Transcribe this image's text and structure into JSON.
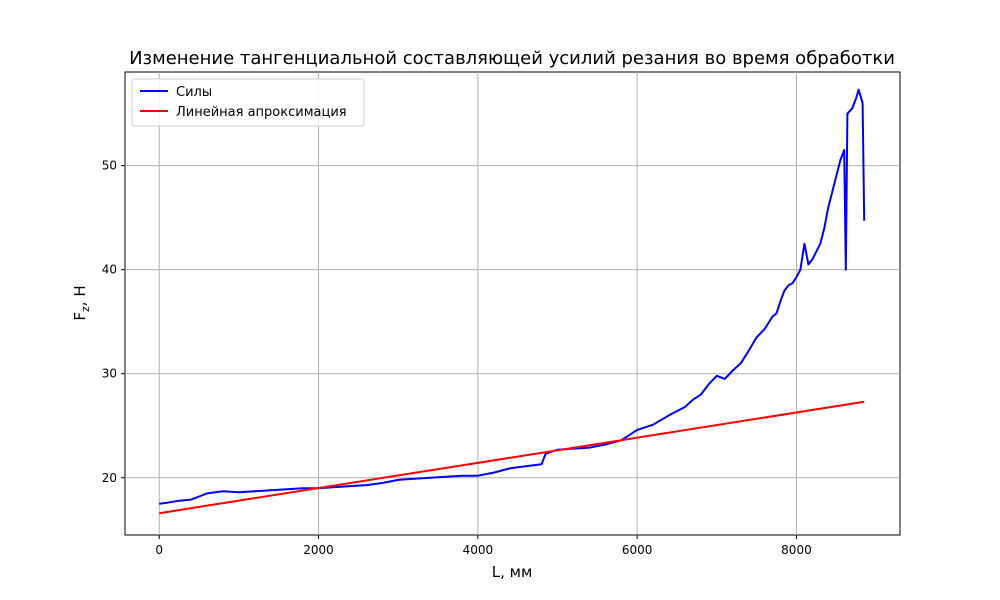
{
  "chart_data": {
    "type": "line",
    "title": "Изменение тангенциальной составляющей усилий резания во время обработки",
    "xlabel": "L, мм",
    "ylabel_main": "F",
    "ylabel_sub": "z",
    "ylabel_rest": ", Н",
    "xlim": [
      -430,
      9300
    ],
    "ylim": [
      14.5,
      59
    ],
    "xticks": [
      0,
      2000,
      4000,
      6000,
      8000
    ],
    "yticks": [
      20,
      30,
      40,
      50
    ],
    "grid": true,
    "legend_position": "top-left",
    "series": [
      {
        "name": "Силы",
        "color": "#0000ff",
        "x": [
          0,
          100,
          250,
          400,
          500,
          600,
          800,
          1000,
          1200,
          1400,
          1600,
          1800,
          2000,
          2200,
          2400,
          2600,
          2800,
          3000,
          3200,
          3400,
          3600,
          3800,
          4000,
          4200,
          4400,
          4600,
          4800,
          4850,
          5000,
          5200,
          5400,
          5600,
          5800,
          6000,
          6200,
          6400,
          6600,
          6700,
          6800,
          6900,
          7000,
          7100,
          7200,
          7300,
          7400,
          7500,
          7600,
          7700,
          7750,
          7800,
          7850,
          7900,
          7950,
          8000,
          8050,
          8100,
          8150,
          8200,
          8300,
          8350,
          8400,
          8450,
          8500,
          8550,
          8600,
          8620,
          8640,
          8700,
          8750,
          8780,
          8800,
          8830,
          8850
        ],
        "y": [
          17.5,
          17.6,
          17.8,
          17.9,
          18.2,
          18.5,
          18.7,
          18.6,
          18.7,
          18.8,
          18.9,
          19.0,
          19.0,
          19.1,
          19.2,
          19.3,
          19.5,
          19.8,
          19.9,
          20.0,
          20.1,
          20.2,
          20.2,
          20.5,
          20.9,
          21.1,
          21.3,
          22.3,
          22.7,
          22.8,
          22.9,
          23.2,
          23.6,
          24.6,
          25.1,
          26.0,
          26.8,
          27.5,
          28.0,
          29.0,
          29.8,
          29.5,
          30.3,
          31.0,
          32.2,
          33.5,
          34.3,
          35.5,
          35.8,
          37.0,
          38.0,
          38.5,
          38.7,
          39.3,
          40.0,
          42.5,
          40.5,
          41.0,
          42.5,
          44.0,
          46.0,
          47.5,
          49.0,
          50.5,
          51.5,
          40.0,
          55.0,
          55.5,
          56.5,
          57.3,
          56.8,
          56.0,
          44.7
        ]
      },
      {
        "name": "Линейная апроксимация",
        "color": "#ff0000",
        "x": [
          0,
          8850
        ],
        "y": [
          16.6,
          27.3
        ]
      }
    ]
  }
}
